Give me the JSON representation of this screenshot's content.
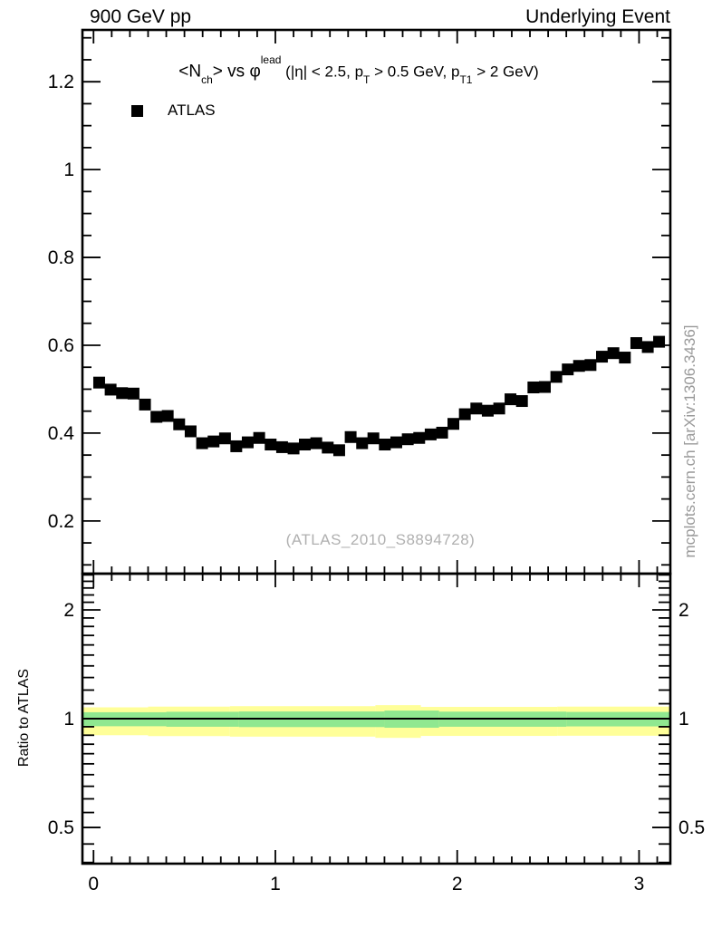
{
  "header": {
    "left": "900 GeV pp",
    "right": "Underlying Event"
  },
  "plot_title": {
    "plain": "<N_ch> vs phi^lead (|eta| < 2.5, p_T > 0.5 GeV, p_T1 > 2 GeV)",
    "segments": [
      {
        "text": "<N"
      },
      {
        "text": "ch",
        "style": "sub"
      },
      {
        "text": "> vs "
      },
      {
        "text": "φ"
      },
      {
        "text": "lead",
        "style": "sup"
      },
      {
        "text": " (|η| < 2.5, p",
        "style": "small"
      },
      {
        "text": "T",
        "style": "sub"
      },
      {
        "text": " > 0.5 GeV, p",
        "style": "small"
      },
      {
        "text": "T1",
        "style": "sub"
      },
      {
        "text": " > 2 GeV)",
        "style": "small"
      }
    ]
  },
  "legend": {
    "items": [
      {
        "label": "ATLAS",
        "marker": "filled-square",
        "color": "#000000"
      }
    ]
  },
  "watermark": "(ATLAS_2010_S8894728)",
  "side_note": "mcplots.cern.ch [arXiv:1306.3436]",
  "ratio_panel_title": "Ratio to ATLAS",
  "colors": {
    "marker": "#000000",
    "band_outer": "#ffff99",
    "band_inner": "#90e890",
    "reference_line": "#000000",
    "frame": "#000000",
    "gray_text": "#999999",
    "watermark_text": "#b0b0b0"
  },
  "chart_data": {
    "type": "scatter",
    "title": "<Nch> vs phi lead (|eta| < 2.5, pT > 0.5 GeV, pT1 > 2 GeV)",
    "xlabel": "",
    "ylabel": "",
    "legend_position": "top-left-inside",
    "grid": false,
    "xlim": [
      -0.061,
      3.172
    ],
    "ylim": [
      0.08,
      1.318
    ],
    "x_major_ticks": [
      0,
      1,
      2,
      3
    ],
    "x_major_labels": [
      "0",
      "1",
      "2",
      "3"
    ],
    "x_minor_step": 0.1,
    "y_major_ticks": [
      0.2,
      0.4,
      0.6,
      0.8,
      1.0,
      1.2
    ],
    "y_major_labels": [
      "0.2",
      "0.4",
      "0.6",
      "0.8",
      "1",
      "1.2"
    ],
    "y_minor_step": 0.05,
    "series": [
      {
        "name": "ATLAS",
        "marker": "filled-square",
        "color": "#000000",
        "x": [
          0.031,
          0.094,
          0.157,
          0.22,
          0.283,
          0.346,
          0.408,
          0.471,
          0.534,
          0.597,
          0.66,
          0.723,
          0.785,
          0.848,
          0.911,
          0.974,
          1.037,
          1.1,
          1.162,
          1.225,
          1.288,
          1.351,
          1.414,
          1.477,
          1.539,
          1.602,
          1.665,
          1.728,
          1.791,
          1.854,
          1.917,
          1.979,
          2.042,
          2.105,
          2.168,
          2.231,
          2.293,
          2.356,
          2.419,
          2.482,
          2.545,
          2.608,
          2.67,
          2.733,
          2.796,
          2.859,
          2.922,
          2.985,
          3.048,
          3.11
        ],
        "y": [
          0.515,
          0.499,
          0.491,
          0.49,
          0.465,
          0.437,
          0.439,
          0.42,
          0.404,
          0.377,
          0.381,
          0.388,
          0.37,
          0.379,
          0.389,
          0.374,
          0.368,
          0.365,
          0.374,
          0.377,
          0.367,
          0.361,
          0.391,
          0.377,
          0.388,
          0.374,
          0.379,
          0.386,
          0.389,
          0.397,
          0.401,
          0.421,
          0.443,
          0.456,
          0.451,
          0.456,
          0.477,
          0.473,
          0.504,
          0.505,
          0.528,
          0.545,
          0.553,
          0.555,
          0.574,
          0.582,
          0.572,
          0.605,
          0.596,
          0.608
        ]
      }
    ],
    "ratio": {
      "label": "Ratio to ATLAS",
      "scale": "log",
      "ylim": [
        0.397,
        2.52
      ],
      "major_ticks": [
        0.5,
        1,
        2
      ],
      "major_labels": [
        "0.5",
        "1",
        "2"
      ],
      "minor_ticks": [
        0.4,
        0.45,
        0.55,
        0.6,
        0.65,
        0.7,
        0.75,
        0.8,
        0.85,
        0.9,
        0.95,
        1.1,
        1.2,
        1.3,
        1.4,
        1.5,
        1.6,
        1.7,
        1.8,
        1.9,
        2.1,
        2.2,
        2.3,
        2.4,
        2.5
      ],
      "reference_line": 1,
      "bands": [
        {
          "name": "outer-uncertainty-band",
          "color": "#ffff99",
          "segments": [
            [
              -0.061,
              0.3,
              0.9,
              1.075
            ],
            [
              0.3,
              0.75,
              0.895,
              1.08
            ],
            [
              0.75,
              1.55,
              0.892,
              1.083
            ],
            [
              1.55,
              1.8,
              0.885,
              1.09
            ],
            [
              1.8,
              2.55,
              0.896,
              1.078
            ],
            [
              2.55,
              3.172,
              0.897,
              1.08
            ]
          ]
        },
        {
          "name": "inner-uncertainty-band",
          "color": "#90e890",
          "segments": [
            [
              -0.061,
              0.4,
              0.953,
              1.042
            ],
            [
              0.4,
              0.8,
              0.95,
              1.045
            ],
            [
              0.8,
              1.6,
              0.948,
              1.047
            ],
            [
              1.6,
              1.9,
              0.944,
              1.053
            ],
            [
              1.9,
              2.6,
              0.95,
              1.046
            ],
            [
              2.6,
              3.172,
              0.952,
              1.044
            ]
          ]
        }
      ]
    }
  }
}
